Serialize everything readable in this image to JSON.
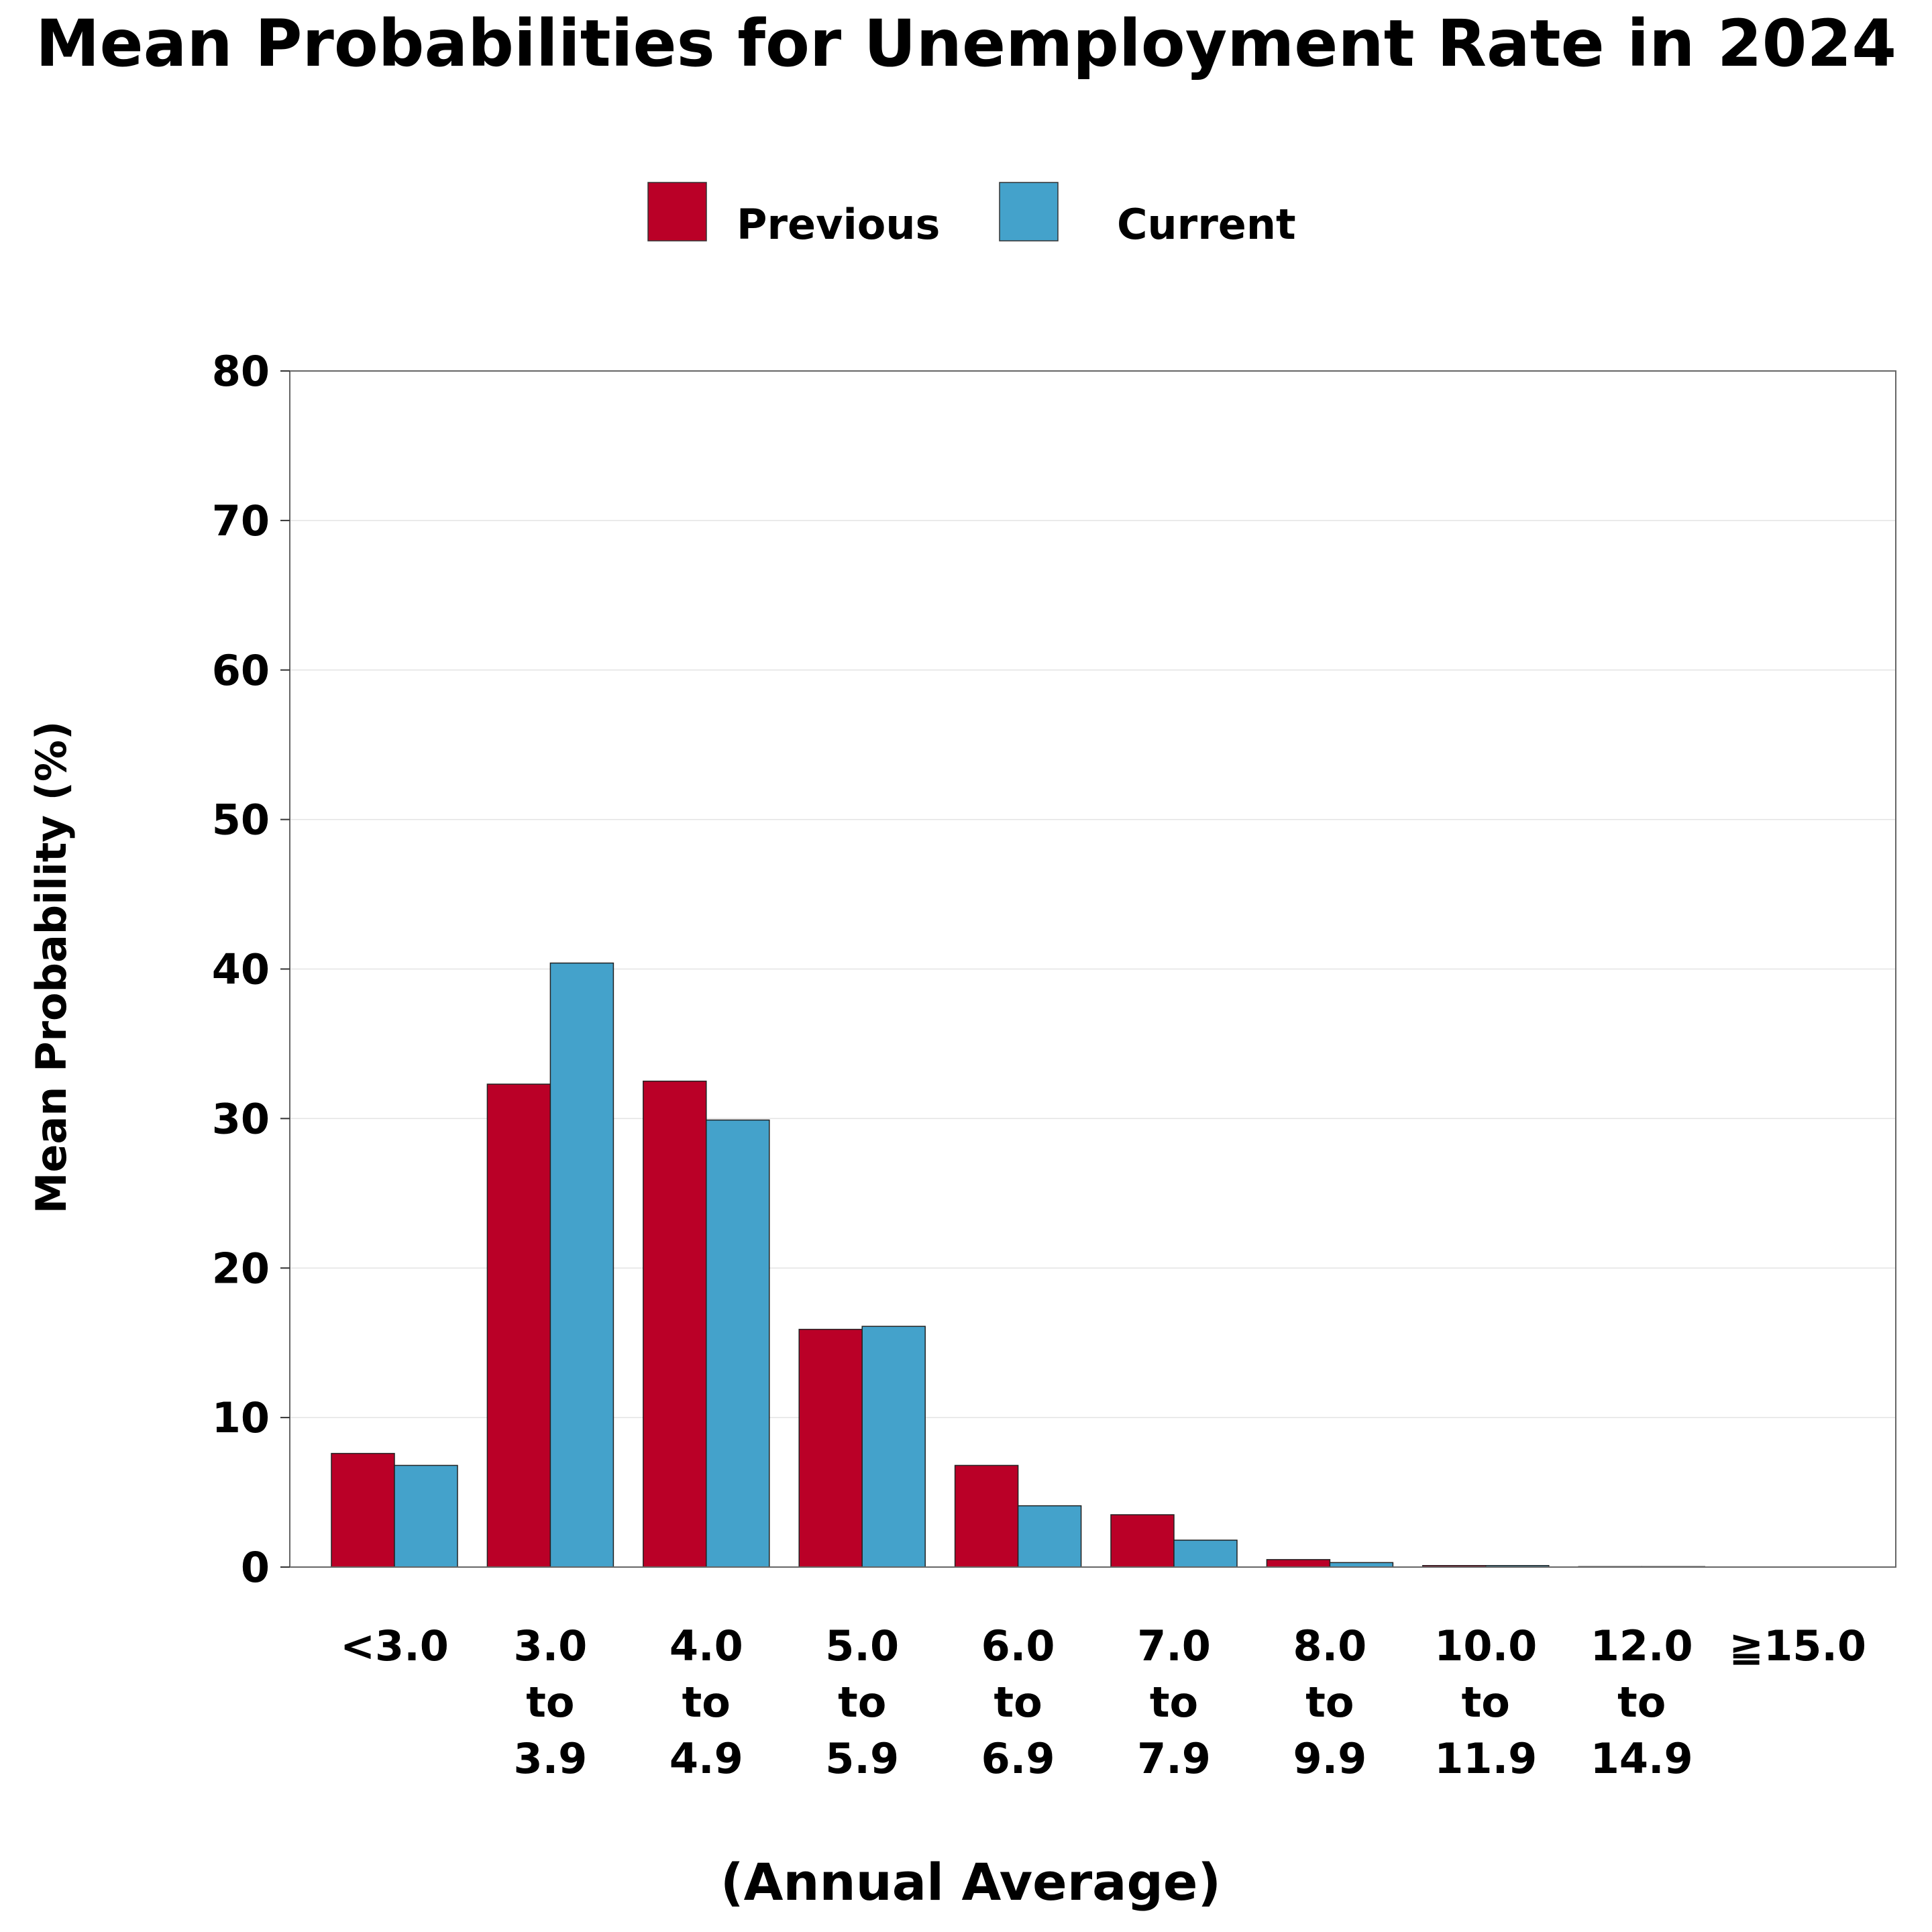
{
  "chart_data": {
    "type": "bar",
    "title": "Mean Probabilities for Unemployment Rate in 2024",
    "xlabel": "(Annual Average)",
    "ylabel": "Mean Probability (%)",
    "ylim": [
      0,
      80
    ],
    "yticks": [
      "0",
      "10",
      "20",
      "30",
      "40",
      "50",
      "60",
      "70",
      "80"
    ],
    "grid": true,
    "legend_position": "top-center",
    "categories": [
      [
        "<3.0"
      ],
      [
        "3.0",
        "to",
        "3.9"
      ],
      [
        "4.0",
        "to",
        "4.9"
      ],
      [
        "5.0",
        "to",
        "5.9"
      ],
      [
        "6.0",
        "to",
        "6.9"
      ],
      [
        "7.0",
        "to",
        "7.9"
      ],
      [
        "8.0",
        "to",
        "9.9"
      ],
      [
        "10.0",
        "to",
        "11.9"
      ],
      [
        "12.0",
        "to",
        "14.9"
      ],
      [
        "≧15.0"
      ]
    ],
    "series": [
      {
        "name": "Previous",
        "color": "#BA0027",
        "values": [
          7.6,
          32.3,
          32.5,
          15.9,
          6.8,
          3.5,
          0.5,
          0.1,
          0.03,
          0.0
        ]
      },
      {
        "name": "Current",
        "color": "#44A2CB",
        "values": [
          6.8,
          40.4,
          29.9,
          16.1,
          4.1,
          1.8,
          0.3,
          0.1,
          0.03,
          0.0
        ]
      }
    ]
  }
}
